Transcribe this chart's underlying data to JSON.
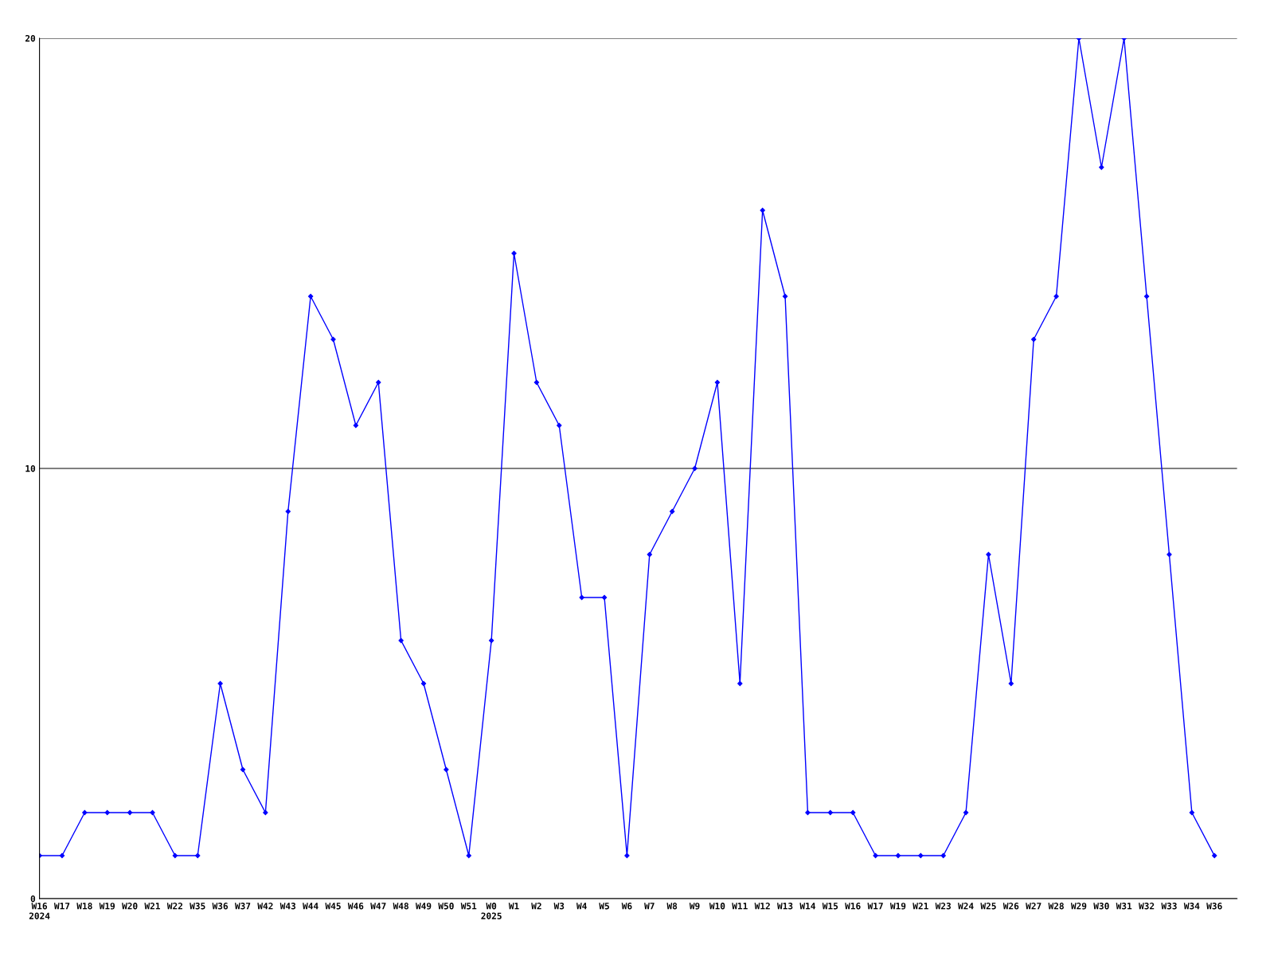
{
  "chart_data": {
    "type": "line",
    "categories": [
      "W16\n2024",
      "W17",
      "W18",
      "W19",
      "W20",
      "W21",
      "W22",
      "W35",
      "W36",
      "W37",
      "W42",
      "W43",
      "W44",
      "W45",
      "W46",
      "W47",
      "W48",
      "W49",
      "W50",
      "W51",
      "W0\n2025",
      "W1",
      "W2",
      "W3",
      "W4",
      "W5",
      "W6",
      "W7",
      "W8",
      "W9",
      "W10",
      "W11",
      "W12",
      "W13",
      "W14",
      "W15",
      "W16",
      "W17",
      "W19",
      "W21",
      "W23",
      "W24",
      "W25",
      "W26",
      "W27",
      "W28",
      "W29",
      "W30",
      "W31",
      "W32",
      "W33",
      "W34",
      "W36"
    ],
    "series": [
      {
        "color": "#0000ff",
        "values": [
          1,
          1,
          2,
          2,
          2,
          2,
          1,
          1,
          5,
          3,
          2,
          9,
          14,
          13,
          11,
          12,
          6,
          5,
          3,
          1,
          6,
          15,
          12,
          11,
          7,
          7,
          1,
          8,
          9,
          10,
          12,
          5,
          16,
          14,
          2,
          2,
          2,
          1,
          1,
          1,
          1,
          2,
          8,
          5,
          13,
          14,
          20,
          17,
          20,
          14,
          8,
          2,
          1
        ]
      }
    ],
    "ylim": [
      0,
      20
    ],
    "yticks": [
      0,
      10,
      20
    ],
    "grid": "y",
    "marker": "diamond",
    "line_style": "solid"
  }
}
